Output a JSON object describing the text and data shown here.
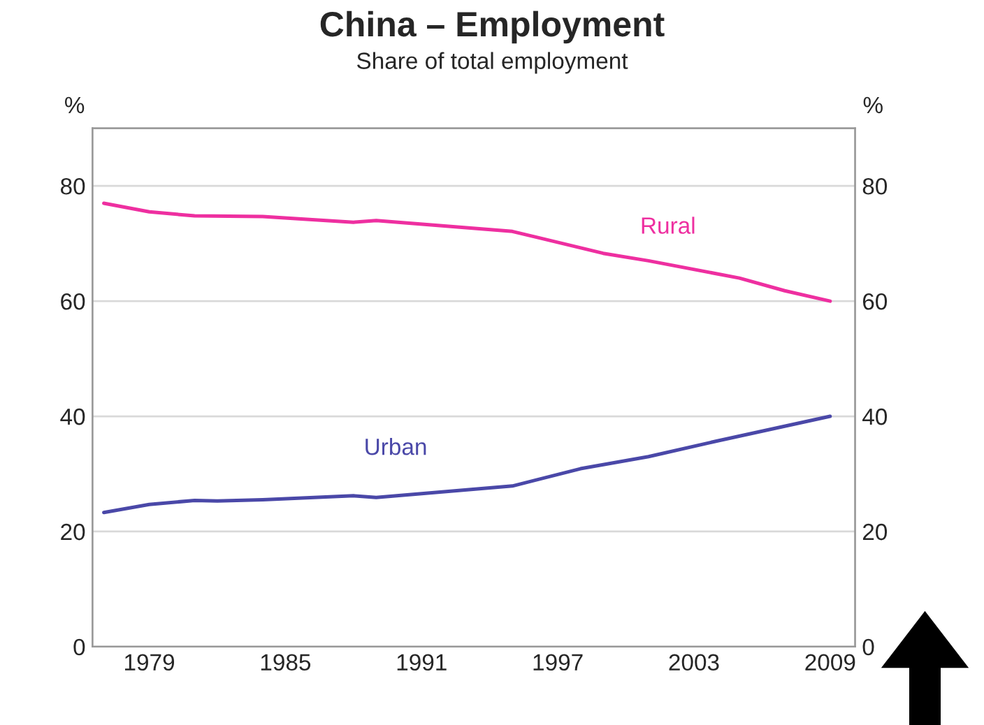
{
  "chart_data": {
    "type": "line",
    "title": "China – Employment",
    "subtitle": "Share of total employment",
    "ylabel": "%",
    "y2label": "%",
    "series": [
      {
        "name": "Rural",
        "color": "#ee2fa0",
        "x": [
          1977,
          1979,
          1981,
          1984,
          1988,
          1989,
          1995,
          1999,
          2001,
          2005,
          2007,
          2009
        ],
        "values": [
          77,
          75.5,
          74.8,
          74.7,
          73.7,
          74.0,
          72.1,
          68.3,
          67,
          64,
          61.8,
          60
        ]
      },
      {
        "name": "Urban",
        "color": "#4a48a8",
        "x": [
          1977,
          1979,
          1981,
          1982,
          1984,
          1988,
          1989,
          1995,
          1998,
          2001,
          2004,
          2009
        ],
        "values": [
          23.3,
          24.7,
          25.4,
          25.3,
          25.5,
          26.2,
          25.9,
          27.9,
          30.9,
          33,
          35.7,
          40
        ]
      }
    ],
    "xlim": [
      1976.5,
      2010.1
    ],
    "xticks": [
      1979,
      1985,
      1991,
      1997,
      2003,
      2009
    ],
    "ylim": [
      0,
      90
    ],
    "yticks": [
      0,
      20,
      40,
      60,
      80
    ],
    "y2lim": [
      0,
      90
    ],
    "y2ticks": [
      0,
      20,
      40,
      60,
      80
    ],
    "grid": "y",
    "legend": false
  }
}
